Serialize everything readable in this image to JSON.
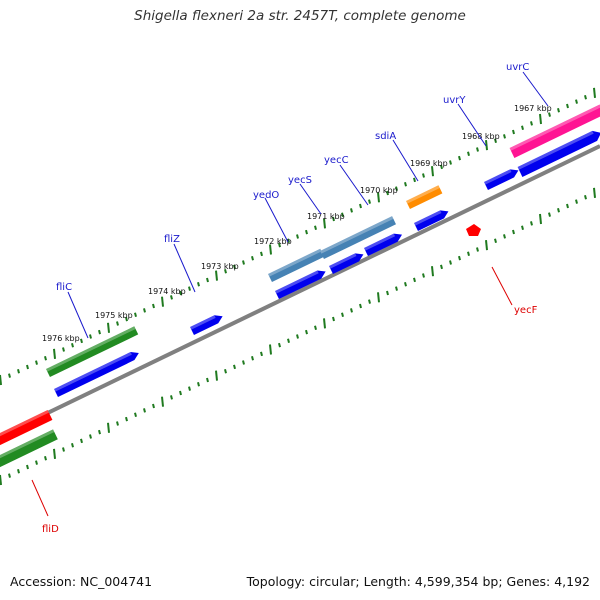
{
  "title": "Shigella flexneri 2a str. 2457T, complete genome",
  "footer": {
    "accession": "Accession: NC_004741",
    "topology": "Topology: circular; Length: 4,599,354 bp; Genes: 4,192"
  },
  "colors": {
    "backbone": "#808080",
    "tick": "#1f7a1f",
    "plus_label": "#1a1acc",
    "minus_label": "#dd0000",
    "cds_blue": "#0000ee",
    "green": "#228b22",
    "steelblue": "#4682b4",
    "orange": "#ff8c00",
    "pink": "#ff1493",
    "red": "#ff0000"
  },
  "scale_labels": [
    "1976 kbp",
    "1975 kbp",
    "1974 kbp",
    "1973 kbp",
    "1972 kbp",
    "1971 kbp",
    "1970 kbp",
    "1969 kbp",
    "1968 kbp",
    "1967 kbp"
  ],
  "genes_plus": [
    "fliC",
    "fliZ",
    "yedO",
    "yecS",
    "yecC",
    "sdiA",
    "uvrY",
    "uvrC"
  ],
  "genes_minus": [
    "fliD",
    "yecF"
  ]
}
